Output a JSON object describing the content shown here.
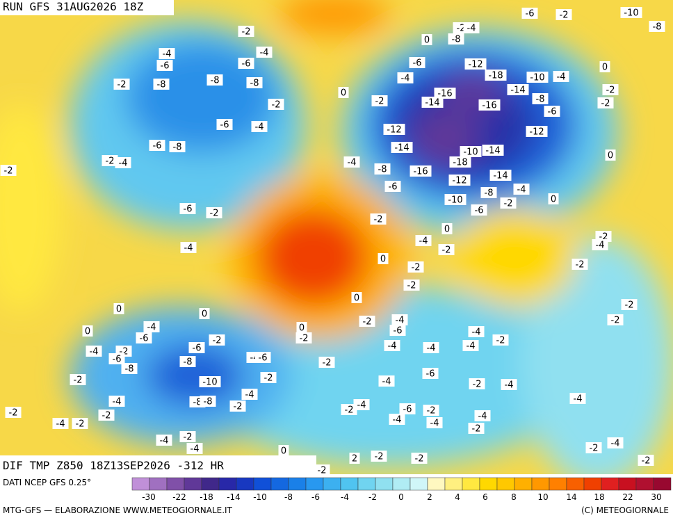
{
  "header": {
    "run": "RUN GFS 31AUG2026 18Z"
  },
  "map": {
    "title": "DIF TMP Z850 18Z13SEP2026 -312 HR",
    "labels": [
      "-4",
      "-6",
      "-8",
      "-2",
      "-8",
      "-8",
      "-6",
      "-4",
      "-2",
      "-2",
      "-6",
      "-4",
      "-6",
      "-8",
      "-2",
      "-4",
      "-6",
      "-2",
      "-4",
      "-2",
      "0",
      "-2",
      "-4",
      "-8",
      "-6",
      "-6",
      "-4",
      "0",
      "-8",
      "-2",
      "-4",
      "-12",
      "-18",
      "-16",
      "-14",
      "-16",
      "-14",
      "-10",
      "-4",
      "-8",
      "-6",
      "-12",
      "-14",
      "-10",
      "-14",
      "-18",
      "-16",
      "-12",
      "-14",
      "-4",
      "-8",
      "-10",
      "-6",
      "-2",
      "0",
      "-6",
      "-2",
      "-10",
      "-8",
      "0",
      "-2",
      "-2",
      "-12",
      "0",
      "-2",
      "-4",
      "-2",
      "0",
      "0",
      "-2",
      "-2",
      "0",
      "-2",
      "-4",
      "-6",
      "-4",
      "-4",
      "-4",
      "-4",
      "-2",
      "-2",
      "-4",
      "-2",
      "-2",
      "-2",
      "0",
      "0",
      "-4",
      "-6",
      "0",
      "-4",
      "-2",
      "-6",
      "-8",
      "-6",
      "-2",
      "-8",
      "-10",
      "-4",
      "-6",
      "-2",
      "-4",
      "-2",
      "-8",
      "-8",
      "0",
      "-2",
      "-2",
      "-4",
      "-6",
      "-2",
      "-4",
      "-2",
      "-4",
      "-6",
      "-2",
      "-4",
      "-4",
      "-4",
      "-2",
      "-4",
      "-2",
      "-4",
      "-2",
      "-2",
      "-4",
      "-2",
      "-4",
      "-2",
      "-4",
      "0",
      "-2",
      "2",
      "-2",
      "-2",
      "-2",
      "-4",
      "-2",
      "-2"
    ]
  },
  "legend": {
    "source": "DATI NCEP GFS 0.25°",
    "colors": [
      "#c090d8",
      "#a070c0",
      "#8050a8",
      "#603898",
      "#40288a",
      "#2828a8",
      "#1838c0",
      "#1050d8",
      "#1468e0",
      "#1a80e8",
      "#2898f0",
      "#3cb0f0",
      "#50c4f0",
      "#70d4f0",
      "#90e0f0",
      "#b0ecf4",
      "#d0f6f8",
      "#fff8c0",
      "#fff080",
      "#ffe840",
      "#ffd800",
      "#ffc800",
      "#ffb000",
      "#ff9800",
      "#ff8000",
      "#f86000",
      "#f04000",
      "#e02020",
      "#c81020",
      "#b01030",
      "#980830"
    ],
    "ticks": [
      "-30",
      "-22",
      "-18",
      "-14",
      "-10",
      "-8",
      "-6",
      "-4",
      "-2",
      "0",
      "2",
      "4",
      "6",
      "8",
      "10",
      "14",
      "18",
      "22",
      "30"
    ]
  },
  "footer": {
    "left": "MTG-GFS — ELABORAZIONE WWW.METEOGIORNALE.IT",
    "right": "(C) METEOGIORNALE"
  }
}
